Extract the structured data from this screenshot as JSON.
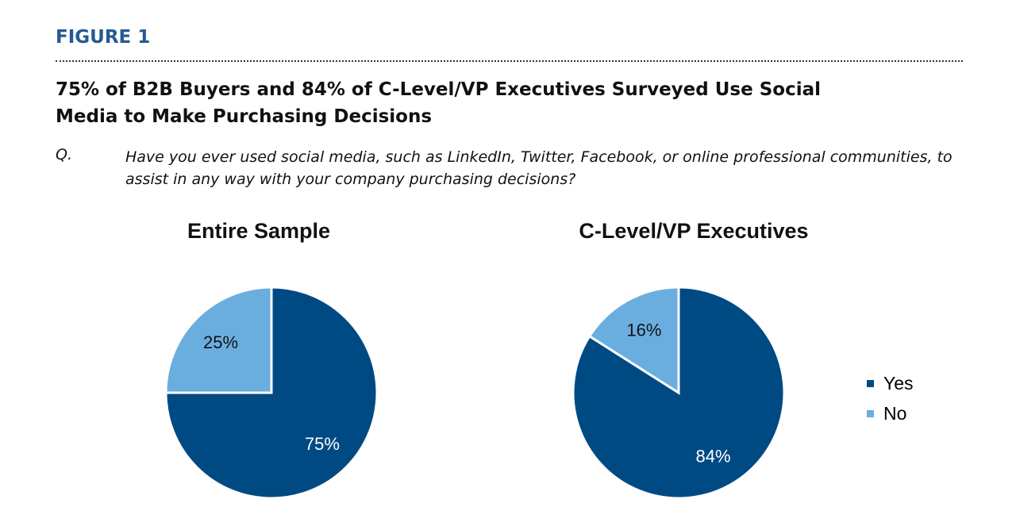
{
  "figure_label": "FIGURE 1",
  "title": "75% of B2B Buyers and 84% of C-Level/VP Executives Surveyed Use Social Media to Make Purchasing Decisions",
  "question_label": "Q.",
  "question": "Have you ever used social media, such as LinkedIn, Twitter, Facebook, or online professional communities, to assist in any way with your company purchasing decisions?",
  "colors": {
    "Yes": "#004a83",
    "No": "#6aaee0",
    "figure_label": "#245a94"
  },
  "chart_data": [
    {
      "type": "pie",
      "title": "Entire Sample",
      "categories": [
        "Yes",
        "No"
      ],
      "values": [
        75,
        25
      ],
      "labels": [
        "75%",
        "25%"
      ]
    },
    {
      "type": "pie",
      "title": "C-Level/VP Executives",
      "categories": [
        "Yes",
        "No"
      ],
      "values": [
        84,
        16
      ],
      "labels": [
        "84%",
        "16%"
      ]
    }
  ],
  "legend": {
    "position": "right",
    "items": [
      "Yes",
      "No"
    ]
  }
}
